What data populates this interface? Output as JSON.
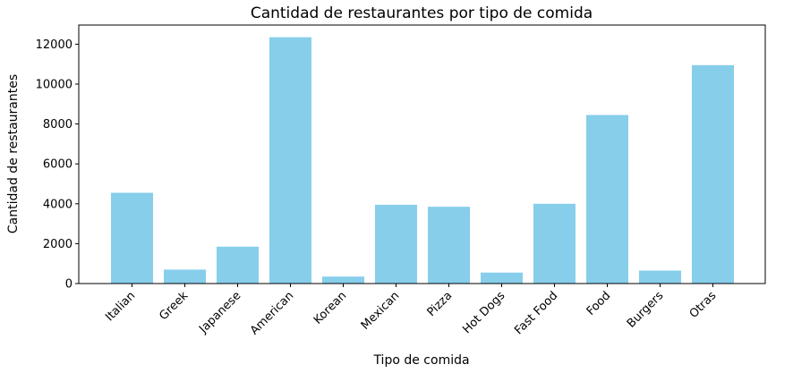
{
  "chart_data": {
    "type": "bar",
    "title": "Cantidad de restaurantes por tipo de comida",
    "xlabel": "Tipo de comida",
    "ylabel": "Cantidad de restaurantes",
    "categories": [
      "Italian",
      "Greek",
      "Japanese",
      "American",
      "Korean",
      "Mexican",
      "Pizza",
      "Hot Dogs",
      "Fast Food",
      "Food",
      "Burgers",
      "Otras"
    ],
    "values": [
      4550,
      700,
      1850,
      12350,
      350,
      3950,
      3850,
      550,
      4000,
      8450,
      650,
      10950
    ],
    "ylim": [
      0,
      12960
    ],
    "yticks": [
      0,
      2000,
      4000,
      6000,
      8000,
      10000,
      12000
    ],
    "grid": false,
    "bar_color": "#87ceeb"
  }
}
